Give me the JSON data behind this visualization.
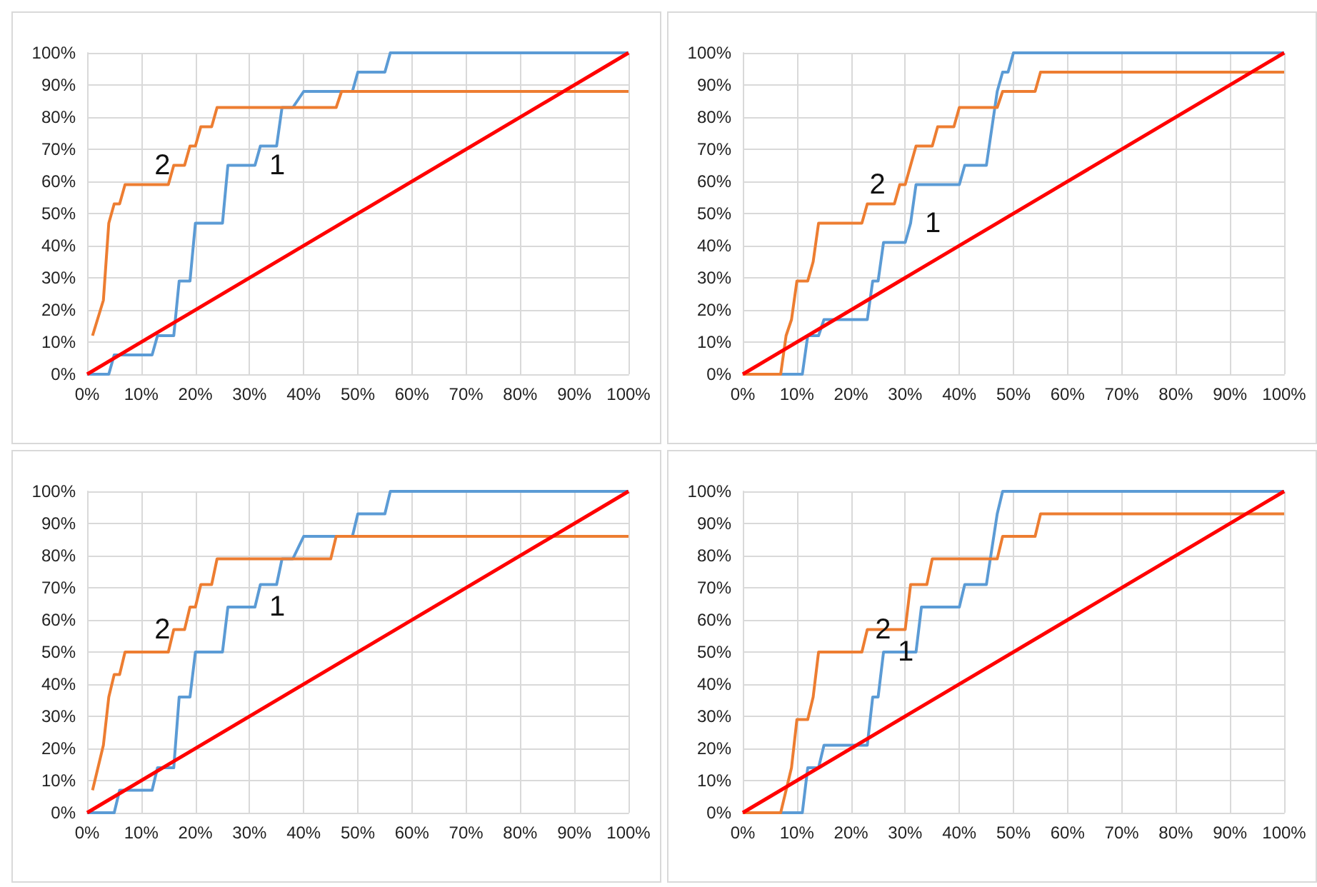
{
  "chart_data": [
    {
      "type": "line",
      "grid": true,
      "xlim": [
        0,
        100
      ],
      "ylim": [
        0,
        100
      ],
      "xticks": [
        {
          "value": 0,
          "label": "0%"
        },
        {
          "value": 10,
          "label": "10%"
        },
        {
          "value": 20,
          "label": "20%"
        },
        {
          "value": 30,
          "label": "30%"
        },
        {
          "value": 40,
          "label": "40%"
        },
        {
          "value": 50,
          "label": "50%"
        },
        {
          "value": 60,
          "label": "60%"
        },
        {
          "value": 70,
          "label": "70%"
        },
        {
          "value": 80,
          "label": "80%"
        },
        {
          "value": 90,
          "label": "90%"
        },
        {
          "value": 100,
          "label": "100%"
        }
      ],
      "yticks": [
        {
          "value": 0,
          "label": "0%"
        },
        {
          "value": 10,
          "label": "10%"
        },
        {
          "value": 20,
          "label": "20%"
        },
        {
          "value": 30,
          "label": "30%"
        },
        {
          "value": 40,
          "label": "40%"
        },
        {
          "value": 50,
          "label": "50%"
        },
        {
          "value": 60,
          "label": "60%"
        },
        {
          "value": 70,
          "label": "70%"
        },
        {
          "value": 80,
          "label": "80%"
        },
        {
          "value": 90,
          "label": "90%"
        },
        {
          "value": 100,
          "label": "100%"
        }
      ],
      "series": [
        {
          "name": "1",
          "color": "#5b9bd5",
          "x": [
            0,
            4,
            5,
            12,
            13,
            16,
            17,
            19,
            20,
            25,
            26,
            31,
            32,
            35,
            36,
            38,
            40,
            49,
            50,
            55,
            56,
            100
          ],
          "values": [
            0,
            0,
            6,
            6,
            12,
            12,
            29,
            29,
            47,
            47,
            65,
            65,
            71,
            71,
            83,
            83,
            88,
            88,
            94,
            94,
            100,
            100
          ]
        },
        {
          "name": "2",
          "color": "#ed7d31",
          "x": [
            1,
            3,
            4,
            5,
            6,
            7,
            15,
            16,
            18,
            19,
            20,
            21,
            23,
            24,
            46,
            47,
            100
          ],
          "values": [
            12,
            23,
            47,
            53,
            53,
            59,
            59,
            65,
            65,
            71,
            71,
            77,
            77,
            83,
            83,
            88,
            88
          ]
        },
        {
          "color": "#ff0000",
          "x": [
            0,
            100
          ],
          "values": [
            0,
            100
          ]
        }
      ],
      "legend": false
    },
    {
      "type": "line",
      "grid": true,
      "xlim": [
        0,
        100
      ],
      "ylim": [
        0,
        100
      ],
      "xticks": [
        {
          "value": 0,
          "label": "0%"
        },
        {
          "value": 10,
          "label": "10%"
        },
        {
          "value": 20,
          "label": "20%"
        },
        {
          "value": 30,
          "label": "30%"
        },
        {
          "value": 40,
          "label": "40%"
        },
        {
          "value": 50,
          "label": "50%"
        },
        {
          "value": 60,
          "label": "60%"
        },
        {
          "value": 70,
          "label": "70%"
        },
        {
          "value": 80,
          "label": "80%"
        },
        {
          "value": 90,
          "label": "90%"
        },
        {
          "value": 100,
          "label": "100%"
        }
      ],
      "yticks": [
        {
          "value": 0,
          "label": "0%"
        },
        {
          "value": 10,
          "label": "10%"
        },
        {
          "value": 20,
          "label": "20%"
        },
        {
          "value": 30,
          "label": "30%"
        },
        {
          "value": 40,
          "label": "40%"
        },
        {
          "value": 50,
          "label": "50%"
        },
        {
          "value": 60,
          "label": "60%"
        },
        {
          "value": 70,
          "label": "70%"
        },
        {
          "value": 80,
          "label": "80%"
        },
        {
          "value": 90,
          "label": "90%"
        },
        {
          "value": 100,
          "label": "100%"
        }
      ],
      "series": [
        {
          "name": "1",
          "color": "#5b9bd5",
          "x": [
            0,
            11,
            12,
            14,
            15,
            23,
            24,
            25,
            26,
            30,
            31,
            32,
            40,
            41,
            45,
            47,
            48,
            49,
            50,
            100
          ],
          "values": [
            0,
            0,
            12,
            12,
            17,
            17,
            29,
            29,
            41,
            41,
            47,
            59,
            59,
            65,
            65,
            88,
            94,
            94,
            100,
            100
          ]
        },
        {
          "name": "2",
          "color": "#ed7d31",
          "x": [
            0,
            7,
            8,
            9,
            10,
            12,
            13,
            14,
            22,
            23,
            28,
            29,
            30,
            32,
            35,
            36,
            39,
            40,
            47,
            48,
            54,
            55,
            100
          ],
          "values": [
            0,
            0,
            12,
            17,
            29,
            29,
            35,
            47,
            47,
            53,
            53,
            59,
            59,
            71,
            71,
            77,
            77,
            83,
            83,
            88,
            88,
            94,
            94
          ]
        },
        {
          "color": "#ff0000",
          "x": [
            0,
            100
          ],
          "values": [
            0,
            100
          ]
        }
      ],
      "legend": false
    },
    {
      "type": "line",
      "grid": true,
      "xlim": [
        0,
        100
      ],
      "ylim": [
        0,
        100
      ],
      "xticks": [
        {
          "value": 0,
          "label": "0%"
        },
        {
          "value": 10,
          "label": "10%"
        },
        {
          "value": 20,
          "label": "20%"
        },
        {
          "value": 30,
          "label": "30%"
        },
        {
          "value": 40,
          "label": "40%"
        },
        {
          "value": 50,
          "label": "50%"
        },
        {
          "value": 60,
          "label": "60%"
        },
        {
          "value": 70,
          "label": "70%"
        },
        {
          "value": 80,
          "label": "80%"
        },
        {
          "value": 90,
          "label": "90%"
        },
        {
          "value": 100,
          "label": "100%"
        }
      ],
      "yticks": [
        {
          "value": 0,
          "label": "0%"
        },
        {
          "value": 10,
          "label": "10%"
        },
        {
          "value": 20,
          "label": "20%"
        },
        {
          "value": 30,
          "label": "30%"
        },
        {
          "value": 40,
          "label": "40%"
        },
        {
          "value": 50,
          "label": "50%"
        },
        {
          "value": 60,
          "label": "60%"
        },
        {
          "value": 70,
          "label": "70%"
        },
        {
          "value": 80,
          "label": "80%"
        },
        {
          "value": 90,
          "label": "90%"
        },
        {
          "value": 100,
          "label": "100%"
        }
      ],
      "series": [
        {
          "name": "1",
          "color": "#5b9bd5",
          "x": [
            0,
            5,
            6,
            12,
            13,
            16,
            17,
            19,
            20,
            25,
            26,
            31,
            32,
            35,
            36,
            38,
            40,
            49,
            50,
            55,
            56,
            100
          ],
          "values": [
            0,
            0,
            7,
            7,
            14,
            14,
            36,
            36,
            50,
            50,
            64,
            64,
            71,
            71,
            79,
            79,
            86,
            86,
            93,
            93,
            100,
            100
          ]
        },
        {
          "name": "2",
          "color": "#ed7d31",
          "x": [
            1,
            3,
            4,
            5,
            6,
            7,
            15,
            16,
            18,
            19,
            20,
            21,
            23,
            24,
            45,
            46,
            100
          ],
          "values": [
            7,
            21,
            36,
            43,
            43,
            50,
            50,
            57,
            57,
            64,
            64,
            71,
            71,
            79,
            79,
            86,
            86
          ]
        },
        {
          "color": "#ff0000",
          "x": [
            0,
            100
          ],
          "values": [
            0,
            100
          ]
        }
      ],
      "legend": false
    },
    {
      "type": "line",
      "grid": true,
      "xlim": [
        0,
        100
      ],
      "ylim": [
        0,
        100
      ],
      "xticks": [
        {
          "value": 0,
          "label": "0%"
        },
        {
          "value": 10,
          "label": "10%"
        },
        {
          "value": 20,
          "label": "20%"
        },
        {
          "value": 30,
          "label": "30%"
        },
        {
          "value": 40,
          "label": "40%"
        },
        {
          "value": 50,
          "label": "50%"
        },
        {
          "value": 60,
          "label": "60%"
        },
        {
          "value": 70,
          "label": "70%"
        },
        {
          "value": 80,
          "label": "80%"
        },
        {
          "value": 90,
          "label": "90%"
        },
        {
          "value": 100,
          "label": "100%"
        }
      ],
      "yticks": [
        {
          "value": 0,
          "label": "0%"
        },
        {
          "value": 10,
          "label": "10%"
        },
        {
          "value": 20,
          "label": "20%"
        },
        {
          "value": 30,
          "label": "30%"
        },
        {
          "value": 40,
          "label": "40%"
        },
        {
          "value": 50,
          "label": "50%"
        },
        {
          "value": 60,
          "label": "60%"
        },
        {
          "value": 70,
          "label": "70%"
        },
        {
          "value": 80,
          "label": "80%"
        },
        {
          "value": 90,
          "label": "90%"
        },
        {
          "value": 100,
          "label": "100%"
        }
      ],
      "series": [
        {
          "name": "1",
          "color": "#5b9bd5",
          "x": [
            0,
            11,
            12,
            14,
            15,
            23,
            24,
            25,
            26,
            32,
            33,
            40,
            41,
            45,
            47,
            48,
            100
          ],
          "values": [
            0,
            0,
            14,
            14,
            21,
            21,
            36,
            36,
            50,
            50,
            64,
            64,
            71,
            71,
            93,
            100,
            100
          ]
        },
        {
          "name": "2",
          "color": "#ed7d31",
          "x": [
            0,
            7,
            9,
            10,
            12,
            13,
            14,
            22,
            23,
            30,
            31,
            34,
            35,
            47,
            48,
            54,
            55,
            100
          ],
          "values": [
            0,
            0,
            14,
            29,
            29,
            36,
            50,
            50,
            57,
            57,
            71,
            71,
            79,
            79,
            86,
            86,
            93,
            93
          ]
        },
        {
          "color": "#ff0000",
          "x": [
            0,
            100
          ],
          "values": [
            0,
            100
          ]
        }
      ],
      "legend": false
    }
  ]
}
